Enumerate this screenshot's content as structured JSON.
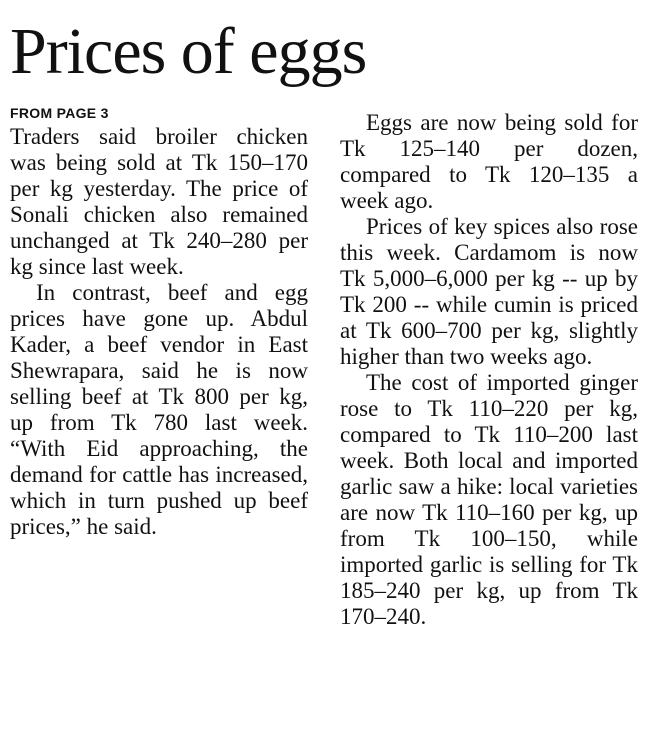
{
  "headline": "Prices of eggs",
  "kicker": "FROM PAGE 3",
  "left_column": [
    "Traders said broiler chicken was being sold at Tk 150–170 per kg yesterday. The price of Sonali chicken also remained unchanged at Tk 240–280 per kg since last week.",
    "In contrast, beef and egg prices have gone up. Abdul Kader, a beef vendor in East Shewrapara, said he is now selling beef at Tk 800 per kg, up from Tk 780 last week. “With Eid approaching, the demand for cattle has increased, which in turn pushed up beef prices,” he said."
  ],
  "right_column": [
    "Eggs are now being sold for Tk 125–140 per dozen, compared to Tk 120–135 a week ago.",
    "Prices of key spices also rose this week. Cardamom is now Tk 5,000–6,000 per kg -- up by Tk 200 -- while cumin is priced at Tk 600–700 per kg, slightly higher than two weeks ago.",
    "The cost of imported ginger rose to Tk 110–220 per kg, compared to Tk 110–200 last week. Both local and imported garlic saw a hike: local varieties are now Tk 110–160 per kg, up from Tk 100–150, while imported garlic is selling for Tk 185–240 per kg, up from Tk 170–240."
  ]
}
